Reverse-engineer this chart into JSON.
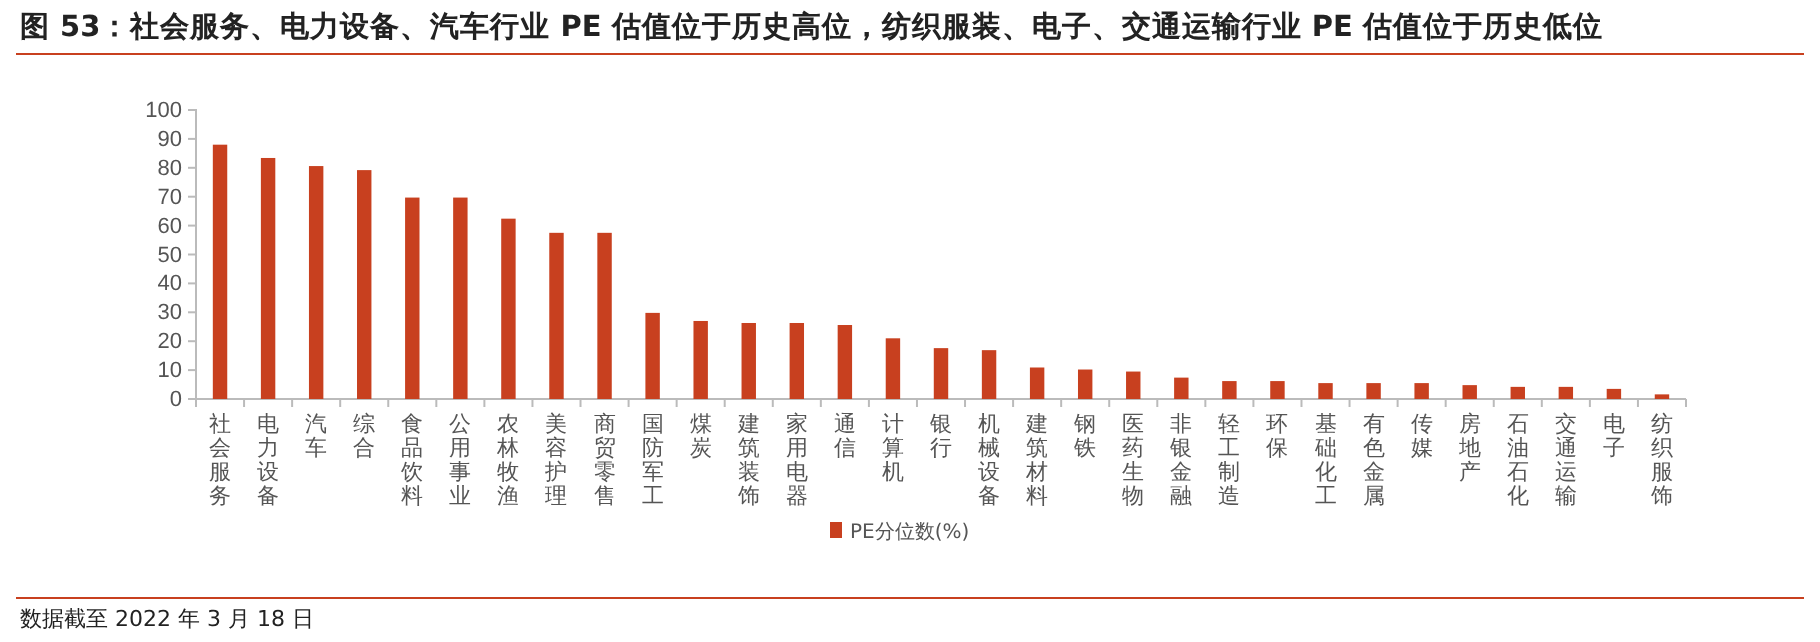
{
  "chart_data": {
    "type": "bar",
    "title": "图 53：社会服务、电力设备、汽车行业 PE 估值位于历史高位，纺织服装、电子、交通运输行业 PE 估值位于历史低位",
    "categories": [
      "社会服务",
      "电力设备",
      "汽车",
      "综合",
      "食品饮料",
      "公用事业",
      "农林牧渔",
      "美容护理",
      "商贸零售",
      "国防军工",
      "煤炭",
      "建筑装饰",
      "家用电器",
      "通信",
      "计算机",
      "银行",
      "机械设备",
      "建筑材料",
      "钢铁",
      "医药生物",
      "非银金融",
      "轻工制造",
      "环保",
      "基础化工",
      "有色金属",
      "传媒",
      "房地产",
      "石油石化",
      "交通运输",
      "电子",
      "纺织服饰"
    ],
    "series": [
      {
        "name": "PE分位数(%)",
        "color": "#c8401f",
        "values": [
          88,
          83.4,
          80.6,
          79.2,
          69.7,
          69.7,
          62.4,
          57.5,
          57.5,
          29.8,
          27,
          26.3,
          26.3,
          25.6,
          21,
          17.6,
          16.9,
          10.9,
          10.2,
          9.5,
          7.4,
          6.2,
          6.2,
          5.5,
          5.5,
          5.5,
          4.8,
          4.2,
          4.2,
          3.5,
          1.6
        ]
      }
    ],
    "ylim": [
      0,
      100
    ],
    "yticks": [
      0,
      10,
      20,
      30,
      40,
      50,
      60,
      70,
      80,
      90,
      100
    ],
    "grid": false,
    "legend": "bottom",
    "annotations": [
      "数据截至 2022 年 3 月 18 日"
    ]
  }
}
